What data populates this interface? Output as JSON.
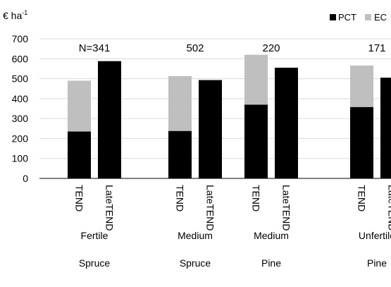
{
  "chart_data": {
    "type": "bar",
    "stacked": true,
    "ylabel_text": "€ ha",
    "ylabel_superscript": "-1",
    "ylim": [
      0,
      700
    ],
    "yticks": [
      0,
      100,
      200,
      300,
      400,
      500,
      600,
      700
    ],
    "grid": "horizontal",
    "legend_position": "top-right",
    "series": [
      {
        "name": "PCT",
        "color": "#000000"
      },
      {
        "name": "EC",
        "color": "#bfbfbf"
      }
    ],
    "groups": [
      {
        "label_line1": "Fertile",
        "label_line2": "Spruce",
        "n_label": "N=341",
        "bars": [
          {
            "label": "TEND",
            "PCT": 235,
            "EC": 255
          },
          {
            "label": "LateTEND",
            "PCT": 588,
            "EC": 0
          }
        ]
      },
      {
        "label_line1": "Medium",
        "label_line2": "Spruce",
        "n_label": "502",
        "bars": [
          {
            "label": "TEND",
            "PCT": 238,
            "EC": 275
          },
          {
            "label": "LateTEND",
            "PCT": 493,
            "EC": 0
          }
        ]
      },
      {
        "label_line1": "Medium",
        "label_line2": "Pine",
        "n_label": "220",
        "bars": [
          {
            "label": "TEND",
            "PCT": 370,
            "EC": 250
          },
          {
            "label": "LateTEND",
            "PCT": 555,
            "EC": 0
          }
        ]
      },
      {
        "label_line1": "Unfertile",
        "label_line2": "Pine",
        "n_label": "171",
        "bars": [
          {
            "label": "TEND",
            "PCT": 358,
            "EC": 208
          },
          {
            "label": "LateTEND",
            "PCT": 505,
            "EC": 0
          }
        ]
      }
    ]
  }
}
